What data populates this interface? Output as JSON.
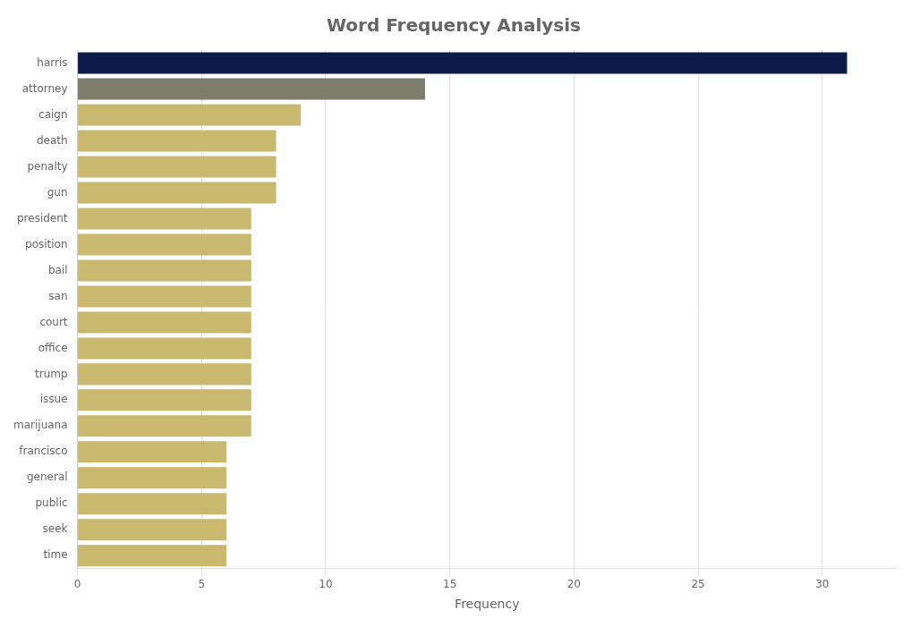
{
  "chart_data": {
    "type": "bar",
    "orientation": "horizontal",
    "title": "Word Frequency Analysis",
    "categories": [
      "harris",
      "attorney",
      "caign",
      "death",
      "penalty",
      "gun",
      "president",
      "position",
      "bail",
      "san",
      "court",
      "office",
      "trump",
      "issue",
      "marijuana",
      "francisco",
      "general",
      "public",
      "seek",
      "time"
    ],
    "values": [
      31,
      14,
      9,
      8,
      8,
      8,
      7,
      7,
      7,
      7,
      7,
      7,
      7,
      7,
      7,
      6,
      6,
      6,
      6,
      6
    ],
    "colors": [
      "#0d1b4b",
      "#7d7d6e",
      "#c8b96e",
      "#c8b96e",
      "#c8b96e",
      "#c8b96e",
      "#c8b96e",
      "#c8b96e",
      "#c8b96e",
      "#c8b96e",
      "#c8b96e",
      "#c8b96e",
      "#c8b96e",
      "#c8b96e",
      "#c8b96e",
      "#c8b96e",
      "#c8b96e",
      "#c8b96e",
      "#c8b96e",
      "#c8b96e"
    ],
    "xlabel": "Frequency",
    "xlim": [
      0,
      33
    ],
    "xticks": [
      0,
      5,
      10,
      15,
      20,
      25,
      30
    ],
    "grid": true
  }
}
